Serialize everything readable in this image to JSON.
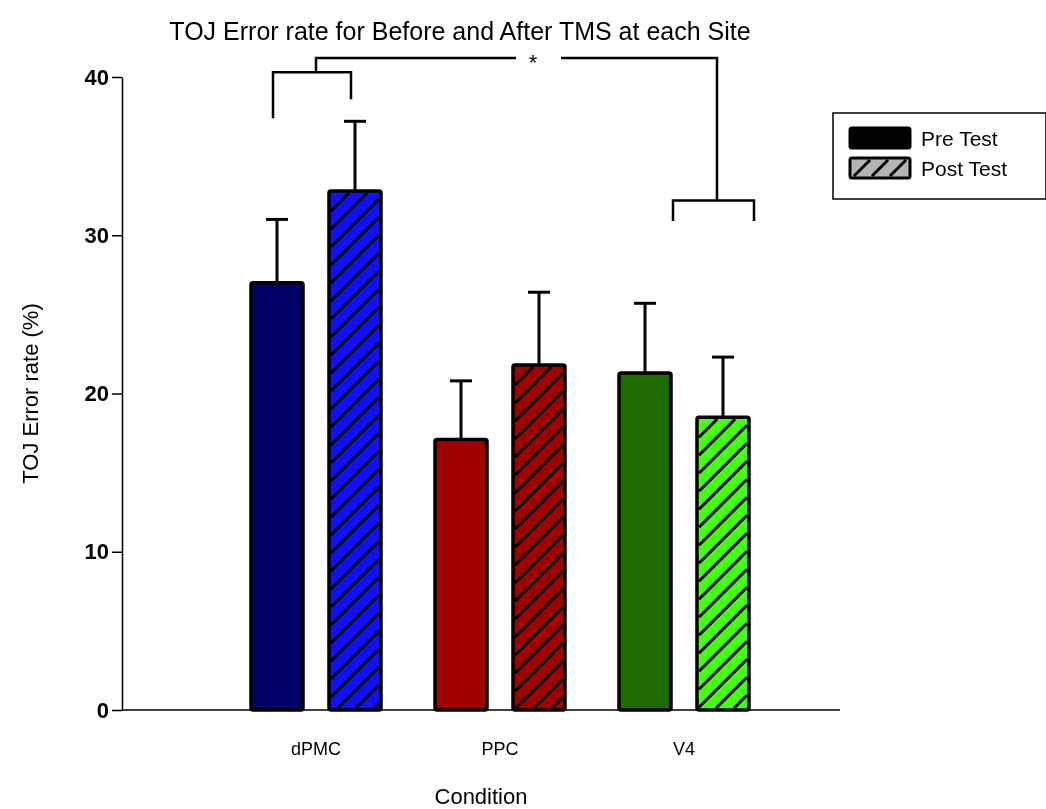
{
  "chart_data": {
    "type": "bar",
    "title": "TOJ Error rate for Before and After TMS at each Site",
    "xlabel": "Condition",
    "ylabel": "TOJ Error rate (%)",
    "categories": [
      "dPMC",
      "PPC",
      "V4"
    ],
    "series": [
      {
        "name": "Pre Test",
        "color": "#000000",
        "colors": [
          "#000066",
          "#a00000",
          "#1e6b00"
        ],
        "values": [
          27.0,
          17.1,
          21.3
        ],
        "errors": [
          4.0,
          3.7,
          4.4
        ]
      },
      {
        "name": "Post Test",
        "color": "#b4b4b4",
        "colors": [
          "#1010ff",
          "#a00000",
          "#44ff11"
        ],
        "values": [
          32.8,
          21.8,
          18.5
        ],
        "errors": [
          4.4,
          4.6,
          3.8
        ]
      }
    ],
    "ylim": [
      0,
      40
    ],
    "yticks": [
      0,
      10,
      20,
      30,
      40
    ],
    "grid": false,
    "legend": "top right",
    "annotations": [
      "*"
    ]
  }
}
